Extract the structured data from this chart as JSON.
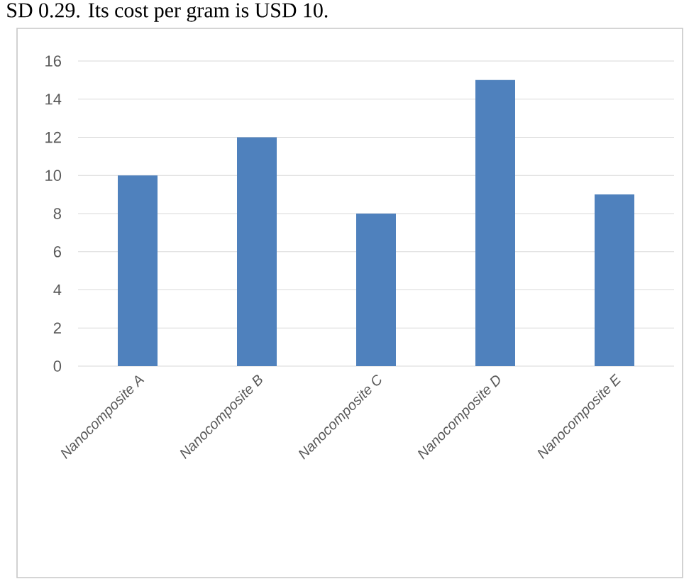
{
  "chart_data": {
    "type": "bar",
    "annotations": [
      "SD 0.29. Its cost per gram is USD 10."
    ],
    "categories": [
      "Nanocomposite A",
      "Nanocomposite B",
      "Nanocomposite C",
      "Nanocomposite D",
      "Nanocomposite E"
    ],
    "values": [
      10,
      12,
      8,
      15,
      9
    ],
    "color": "#4f81bd",
    "ylim": [
      0,
      16
    ],
    "yticks": [
      0,
      2,
      4,
      6,
      8,
      10,
      12,
      14,
      16
    ],
    "grid": "y"
  }
}
